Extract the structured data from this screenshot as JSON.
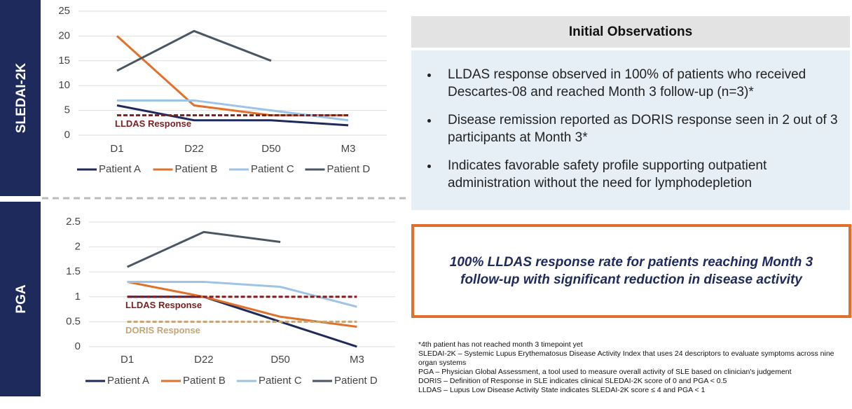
{
  "chart_data": [
    {
      "type": "line",
      "panel_label": "SLEDAI-2K",
      "categories": [
        "D1",
        "D22",
        "D50",
        "M3"
      ],
      "ylim": [
        0,
        25
      ],
      "yticks": [
        0,
        5,
        10,
        15,
        20,
        25
      ],
      "grid": true,
      "series": [
        {
          "name": "Patient A",
          "color": "#1f2a5c",
          "values": [
            6,
            3,
            3,
            2
          ]
        },
        {
          "name": "Patient B",
          "color": "#e0702a",
          "values": [
            20,
            6,
            4,
            4
          ]
        },
        {
          "name": "Patient C",
          "color": "#9dc3e6",
          "values": [
            7,
            7,
            5,
            3
          ]
        },
        {
          "name": "Patient D",
          "color": "#4a5663",
          "values": [
            13,
            21,
            15,
            null
          ]
        }
      ],
      "reference_lines": [
        {
          "name": "LLDAS Response",
          "value": 4,
          "color": "#7b1f1f"
        }
      ]
    },
    {
      "type": "line",
      "panel_label": "PGA",
      "categories": [
        "D1",
        "D22",
        "D50",
        "M3"
      ],
      "ylim": [
        0,
        2.5
      ],
      "yticks": [
        0,
        0.5,
        1,
        1.5,
        2,
        2.5
      ],
      "grid": true,
      "series": [
        {
          "name": "Patient A",
          "color": "#1f2a5c",
          "values": [
            1,
            1,
            0.5,
            0
          ]
        },
        {
          "name": "Patient B",
          "color": "#e0702a",
          "values": [
            1.3,
            1,
            0.6,
            0.4
          ]
        },
        {
          "name": "Patient C",
          "color": "#9dc3e6",
          "values": [
            1.3,
            1.3,
            1.2,
            0.8
          ]
        },
        {
          "name": "Patient D",
          "color": "#4a5663",
          "values": [
            1.6,
            2.3,
            2.1,
            null
          ]
        }
      ],
      "reference_lines": [
        {
          "name": "LLDAS Response",
          "value": 1,
          "color": "#7b1f1f"
        },
        {
          "name": "DORIS Response",
          "value": 0.5,
          "color": "#c4a574"
        }
      ]
    }
  ],
  "observations": {
    "title": "Initial Observations",
    "bullets": [
      "LLDAS response observed in 100% of patients who received Descartes-08 and reached Month 3 follow-up (n=3)*",
      "Disease remission reported as DORIS response seen in 2 out of 3 participants at Month 3*",
      "Indicates favorable safety profile supporting outpatient administration without the need for lymphodepletion"
    ]
  },
  "highlight": "100% LLDAS response rate for patients reaching Month 3 follow-up with significant reduction in disease activity",
  "footnotes": [
    "*4th patient has not reached month 3 timepoint yet",
    "SLEDAI-2K – Systemic Lupus Erythematosus Disease Activity Index that uses 24 descriptors to evaluate symptoms across nine organ systems",
    "PGA – Physician Global Assessment, a tool used to measure overall activity of SLE based on clinician's judgement",
    "DORIS – Definition of Response in SLE indicates clinical SLEDAI-2K score of 0 and PGA < 0.5",
    "LLDAS – Lupus Low Disease Activity State indicates SLEDAI-2K score ≤ 4 and PGA < 1"
  ]
}
